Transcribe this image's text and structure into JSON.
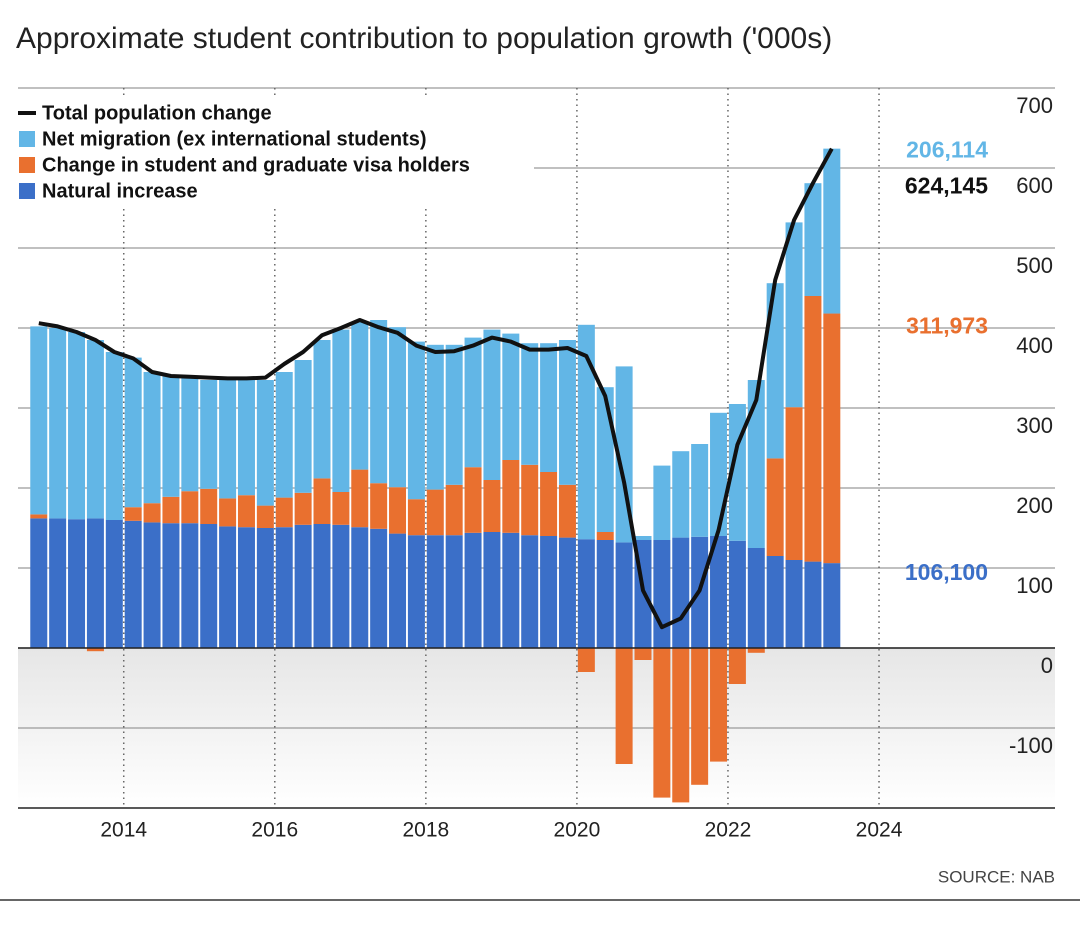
{
  "chart_data": {
    "type": "bar",
    "title": "Approximate student contribution to population growth ('000s)",
    "source": "SOURCE: NAB",
    "x": [
      2012.875,
      2013.125,
      2013.375,
      2013.625,
      2013.875,
      2014.125,
      2014.375,
      2014.625,
      2014.875,
      2015.125,
      2015.375,
      2015.625,
      2015.875,
      2016.125,
      2016.375,
      2016.625,
      2016.875,
      2017.125,
      2017.375,
      2017.625,
      2017.875,
      2018.125,
      2018.375,
      2018.625,
      2018.875,
      2019.125,
      2019.375,
      2019.625,
      2019.875,
      2020.125,
      2020.375,
      2020.625,
      2020.875,
      2021.125,
      2021.375,
      2021.625,
      2021.875,
      2022.125,
      2022.375,
      2022.625,
      2022.875,
      2023.125,
      2023.375
    ],
    "xlim": [
      2012.6,
      2026.33
    ],
    "xticks": [
      2014,
      2016,
      2018,
      2020,
      2022,
      2024
    ],
    "ylim": [
      -200,
      700
    ],
    "yticks": [
      -100,
      0,
      100,
      200,
      300,
      400,
      500,
      600,
      700
    ],
    "grid": true,
    "stacked": true,
    "legend": "top-left",
    "series": [
      {
        "name": "Total population change",
        "type": "line",
        "color": "#111111",
        "values": [
          406,
          402,
          395,
          385,
          370,
          362,
          345,
          340,
          339,
          338,
          337,
          337,
          338,
          355,
          370,
          391,
          400,
          410,
          401,
          394,
          378,
          370,
          371,
          378,
          388,
          383,
          373,
          373,
          375,
          365,
          315,
          207,
          72,
          26,
          37,
          72,
          147,
          254,
          310,
          460,
          535,
          581,
          624.145
        ],
        "value_labels": [
          null,
          null,
          null,
          null,
          null,
          null,
          null,
          null,
          null,
          null,
          null,
          null,
          null,
          null,
          null,
          null,
          null,
          null,
          null,
          null,
          null,
          null,
          null,
          null,
          null,
          null,
          null,
          null,
          null,
          null,
          null,
          null,
          null,
          null,
          null,
          null,
          null,
          null,
          null,
          null,
          null,
          null,
          "624,145"
        ]
      },
      {
        "name": "Net migration (ex international students)",
        "type": "bar",
        "color": "#62b6e6",
        "values": [
          235,
          238,
          234,
          223,
          210,
          187,
          164,
          151,
          143,
          136,
          148,
          144,
          157,
          157,
          166,
          173,
          203,
          185,
          204,
          200,
          197,
          181,
          175,
          162,
          188,
          158,
          152,
          161,
          181,
          268,
          181,
          220,
          5,
          93,
          108,
          116,
          154,
          171,
          210,
          219,
          231,
          141,
          206.114
        ],
        "value_labels": [
          null,
          null,
          null,
          null,
          null,
          null,
          null,
          null,
          null,
          null,
          null,
          null,
          null,
          null,
          null,
          null,
          null,
          null,
          null,
          null,
          null,
          null,
          null,
          null,
          null,
          null,
          null,
          null,
          null,
          null,
          null,
          null,
          null,
          null,
          null,
          null,
          null,
          null,
          null,
          null,
          null,
          null,
          "206,114"
        ]
      },
      {
        "name": "Change in student and graduate visa holders",
        "type": "bar",
        "color": "#e9702f",
        "values": [
          5,
          0,
          0,
          -4,
          0,
          17,
          24,
          33,
          40,
          44,
          35,
          40,
          28,
          37,
          40,
          57,
          41,
          72,
          57,
          58,
          45,
          57,
          63,
          82,
          65,
          91,
          88,
          80,
          66,
          -30,
          10,
          -145,
          -15,
          -187,
          -193,
          -171,
          -142,
          -45,
          -6,
          122,
          191,
          332,
          311.973
        ],
        "value_labels": [
          null,
          null,
          null,
          null,
          null,
          null,
          null,
          null,
          null,
          null,
          null,
          null,
          null,
          null,
          null,
          null,
          null,
          null,
          null,
          null,
          null,
          null,
          null,
          null,
          null,
          null,
          null,
          null,
          null,
          null,
          null,
          null,
          null,
          null,
          null,
          null,
          null,
          null,
          null,
          null,
          null,
          null,
          "311,973"
        ]
      },
      {
        "name": "Natural increase",
        "type": "bar",
        "color": "#3b6fc8",
        "values": [
          162,
          162,
          161,
          162,
          160,
          159,
          157,
          156,
          156,
          155,
          152,
          151,
          150,
          151,
          154,
          155,
          154,
          151,
          149,
          143,
          141,
          141,
          141,
          144,
          145,
          144,
          141,
          140,
          138,
          136,
          135,
          132,
          135,
          135,
          138,
          139,
          140,
          134,
          125,
          115,
          110,
          108,
          106.1
        ],
        "value_labels": [
          null,
          null,
          null,
          null,
          null,
          null,
          null,
          null,
          null,
          null,
          null,
          null,
          null,
          null,
          null,
          null,
          null,
          null,
          null,
          null,
          null,
          null,
          null,
          null,
          null,
          null,
          null,
          null,
          null,
          null,
          null,
          null,
          null,
          null,
          null,
          null,
          null,
          null,
          null,
          null,
          null,
          null,
          "106,100"
        ]
      }
    ]
  }
}
